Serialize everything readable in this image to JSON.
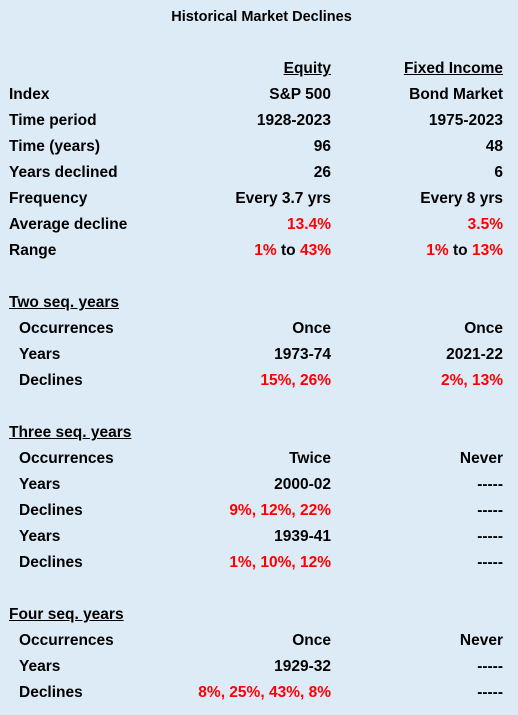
{
  "title": "Historical Market Declines",
  "columns": [
    "Equity",
    "Fixed Income"
  ],
  "summary": {
    "rows": [
      {
        "label": "Index",
        "equity": "S&P 500",
        "fixed_income": "Bond Market"
      },
      {
        "label": "Time period",
        "equity": "1928-2023",
        "fixed_income": "1975-2023"
      },
      {
        "label": "Time (years)",
        "equity": 96,
        "fixed_income": 48
      },
      {
        "label": "Years declined",
        "equity": 26,
        "fixed_income": 6
      },
      {
        "label": "Frequency",
        "equity": "Every 3.7 yrs",
        "fixed_income": "Every 8 yrs"
      },
      {
        "label": "Average decline",
        "equity": "13.4%",
        "fixed_income": "3.5%"
      },
      {
        "label": "Range",
        "equity": {
          "low": "1%",
          "to": "to",
          "high": "43%"
        },
        "fixed_income": {
          "low": "1%",
          "to": "to",
          "high": "13%"
        }
      }
    ]
  },
  "sections": [
    {
      "title": "Two seq. years",
      "rows": [
        {
          "label": "Occurrences",
          "equity": "Once",
          "fixed_income": "Once"
        },
        {
          "label": "Years",
          "equity": "1973-74",
          "fixed_income": "2021-22"
        },
        {
          "label": "Declines",
          "equity": "15%, 26%",
          "fixed_income": "2%, 13%"
        }
      ]
    },
    {
      "title": "Three seq. years",
      "rows": [
        {
          "label": "Occurrences",
          "equity": "Twice",
          "fixed_income": "Never"
        },
        {
          "label": "Years",
          "equity": "2000-02",
          "fixed_income": "-----"
        },
        {
          "label": "Declines",
          "equity": "9%, 12%, 22%",
          "fixed_income": "-----"
        },
        {
          "label": "Years",
          "equity": "1939-41",
          "fixed_income": "-----"
        },
        {
          "label": "Declines",
          "equity": "1%, 10%, 12%",
          "fixed_income": "-----"
        }
      ]
    },
    {
      "title": "Four seq. years",
      "rows": [
        {
          "label": "Occurrences",
          "equity": "Once",
          "fixed_income": "Never"
        },
        {
          "label": "Years",
          "equity": "1929-32",
          "fixed_income": "-----"
        },
        {
          "label": "Declines",
          "equity": "8%, 25%, 43%, 8%",
          "fixed_income": "-----"
        }
      ]
    }
  ]
}
